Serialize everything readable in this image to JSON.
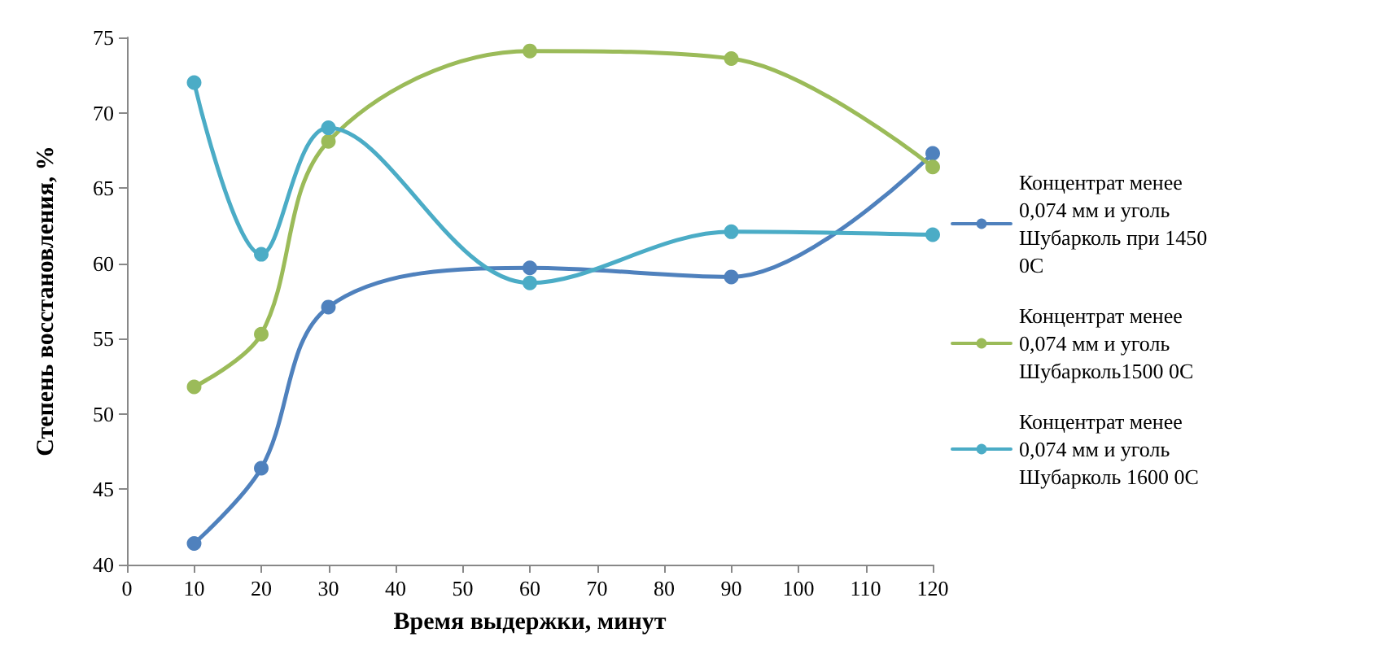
{
  "chart_data": {
    "type": "line",
    "xlabel": "Время выдержки, минут",
    "ylabel": "Степень восстановления, %",
    "x": [
      10,
      20,
      30,
      60,
      90,
      120
    ],
    "series": [
      {
        "name": "Концентрат менее 0,074 мм и уголь Шубарколь при 1450 0С",
        "color": "#4f81bd",
        "values": [
          41.4,
          46.4,
          57.1,
          59.7,
          59.1,
          67.3
        ]
      },
      {
        "name": "Концентрат менее 0,074 мм и уголь Шубарколь1500 0С",
        "color": "#9bbb59",
        "values": [
          51.8,
          55.3,
          68.1,
          74.1,
          73.6,
          66.4
        ]
      },
      {
        "name": "Концентрат менее 0,074 мм и уголь Шубарколь 1600 0С",
        "color": "#4bacc6",
        "values": [
          72.0,
          60.6,
          69.0,
          58.7,
          62.1,
          61.9
        ]
      }
    ],
    "xlim": [
      0,
      120
    ],
    "xticks": [
      0,
      10,
      20,
      30,
      40,
      50,
      60,
      70,
      80,
      90,
      100,
      110,
      120
    ],
    "ylim": [
      40,
      75
    ],
    "yticks": [
      40,
      45,
      50,
      55,
      60,
      65,
      70,
      75
    ],
    "grid": false,
    "legend": "right",
    "marker": "circle",
    "line_style": "solid"
  }
}
